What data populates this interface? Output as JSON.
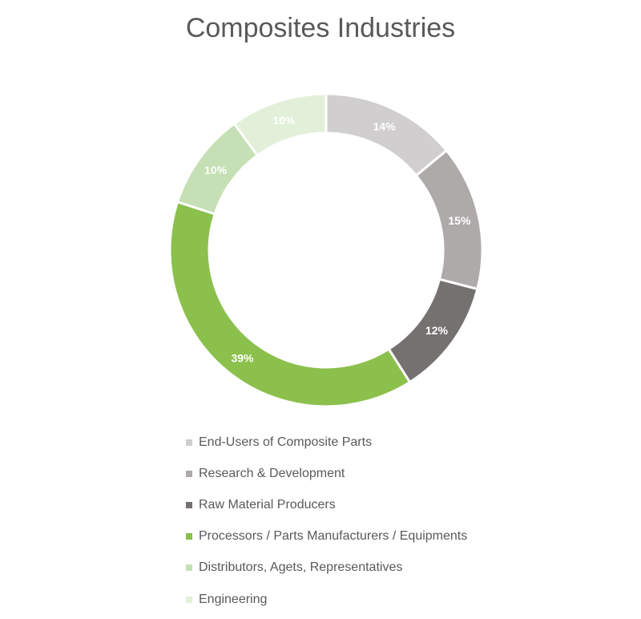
{
  "chart_data": {
    "type": "pie",
    "title": "Composites Industries",
    "categories": [
      "End-Users of Composite Parts",
      "Research & Development",
      "Raw Material Producers",
      "Processors / Parts Manufacturers / Equipments",
      "Distributors, Agets, Representatives",
      "Engineering"
    ],
    "values": [
      14,
      15,
      12,
      39,
      10,
      10
    ],
    "value_labels": [
      "14%",
      "15%",
      "12%",
      "39%",
      "10%",
      "10%"
    ],
    "colors": [
      "#d0cece",
      "#aeaaaa",
      "#767171",
      "#8bc04c",
      "#c5e0b4",
      "#e2f0d9"
    ],
    "style": "donut",
    "legend_position": "bottom"
  }
}
